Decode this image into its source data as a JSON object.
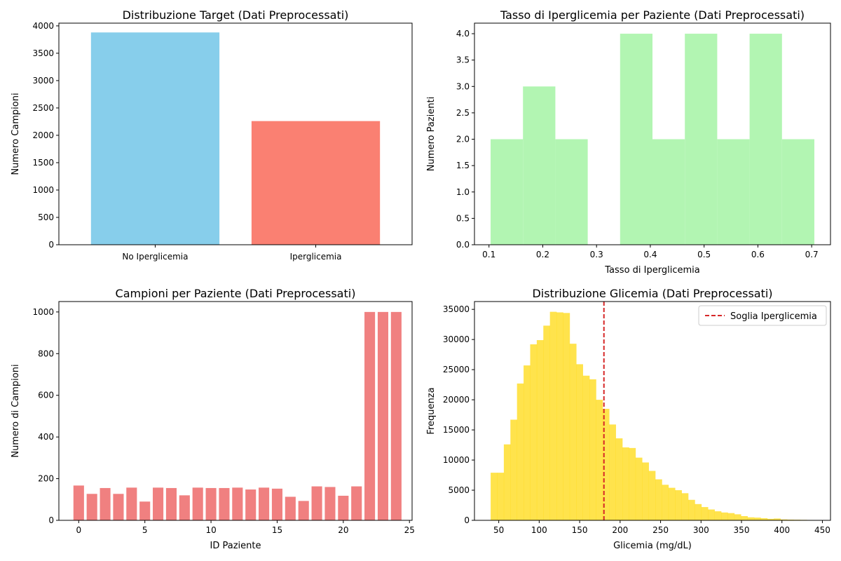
{
  "chart_data": [
    {
      "type": "bar",
      "title": "Distribuzione Target (Dati Preprocessati)",
      "xlabel": "",
      "ylabel": "Numero Campioni",
      "categories": [
        "No Iperglicemia",
        "Iperglicemia"
      ],
      "values": [
        3880,
        2260
      ],
      "colors": [
        "#87ceeb",
        "#fa8072"
      ],
      "ylim": [
        0,
        4050
      ],
      "yticks": [
        0,
        500,
        1000,
        1500,
        2000,
        2500,
        3000,
        3500,
        4000
      ],
      "grid": false
    },
    {
      "type": "bar",
      "title": "Tasso di Iperglicemia per Paziente (Dati Preprocessati)",
      "xlabel": "Tasso di Iperglicemia",
      "ylabel": "Numero Pazienti",
      "bin_edges": [
        0.103,
        0.1632,
        0.2234,
        0.2836,
        0.3438,
        0.404,
        0.4642,
        0.5244,
        0.5846,
        0.6448,
        0.705
      ],
      "values": [
        2,
        3,
        2,
        0,
        4,
        2,
        4,
        2,
        4,
        2
      ],
      "color": "#b2f5b2",
      "xlim": [
        0.073,
        0.735
      ],
      "ylim": [
        0,
        4.2
      ],
      "xticks": [
        0.1,
        0.2,
        0.3,
        0.4,
        0.5,
        0.6,
        0.7
      ],
      "yticks": [
        0.0,
        0.5,
        1.0,
        1.5,
        2.0,
        2.5,
        3.0,
        3.5,
        4.0
      ],
      "grid": false
    },
    {
      "type": "bar",
      "title": "Campioni per Paziente (Dati Preprocessati)",
      "xlabel": "ID Paziente",
      "ylabel": "Numero di Campioni",
      "x": [
        0,
        1,
        2,
        3,
        4,
        5,
        6,
        7,
        8,
        9,
        10,
        11,
        12,
        13,
        14,
        15,
        16,
        17,
        18,
        19,
        20,
        21,
        22,
        23,
        24
      ],
      "values": [
        167,
        127,
        155,
        127,
        157,
        90,
        157,
        155,
        120,
        157,
        155,
        155,
        157,
        148,
        157,
        152,
        113,
        93,
        163,
        160,
        118,
        163,
        1000,
        1000,
        1000
      ],
      "color": "#f08080",
      "xlim": [
        -1.5,
        25.2
      ],
      "ylim": [
        0,
        1050
      ],
      "xticks": [
        0,
        5,
        10,
        15,
        20,
        25
      ],
      "yticks": [
        0,
        200,
        400,
        600,
        800,
        1000
      ],
      "grid": false
    },
    {
      "type": "bar",
      "title": "Distribuzione Glicemia (Dati Preprocessati)",
      "xlabel": "Glicemia (mg/dL)",
      "ylabel": "Frequenza",
      "bin_start": 40,
      "bin_width": 8.14,
      "values": [
        7900,
        7900,
        12600,
        16700,
        22700,
        25700,
        29200,
        29900,
        32300,
        34600,
        34500,
        34400,
        29300,
        25900,
        24000,
        23400,
        20000,
        18500,
        15900,
        13600,
        12100,
        12000,
        10400,
        9600,
        8200,
        6800,
        5900,
        5400,
        5000,
        4500,
        3400,
        2700,
        2200,
        1800,
        1500,
        1300,
        1200,
        1000,
        700,
        500,
        450,
        350,
        250,
        300,
        150,
        120,
        100,
        80,
        60,
        40
      ],
      "color": "#ffd700",
      "opacity": 0.7,
      "threshold": 180,
      "threshold_color": "#d62728",
      "legend": {
        "label": "Soglia Iperglicemia",
        "position": "upper right"
      },
      "xlim": [
        20,
        460
      ],
      "ylim": [
        0,
        36300
      ],
      "xticks": [
        50,
        100,
        150,
        200,
        250,
        300,
        350,
        400,
        450
      ],
      "yticks": [
        0,
        5000,
        10000,
        15000,
        20000,
        25000,
        30000,
        35000
      ],
      "grid": false
    }
  ]
}
